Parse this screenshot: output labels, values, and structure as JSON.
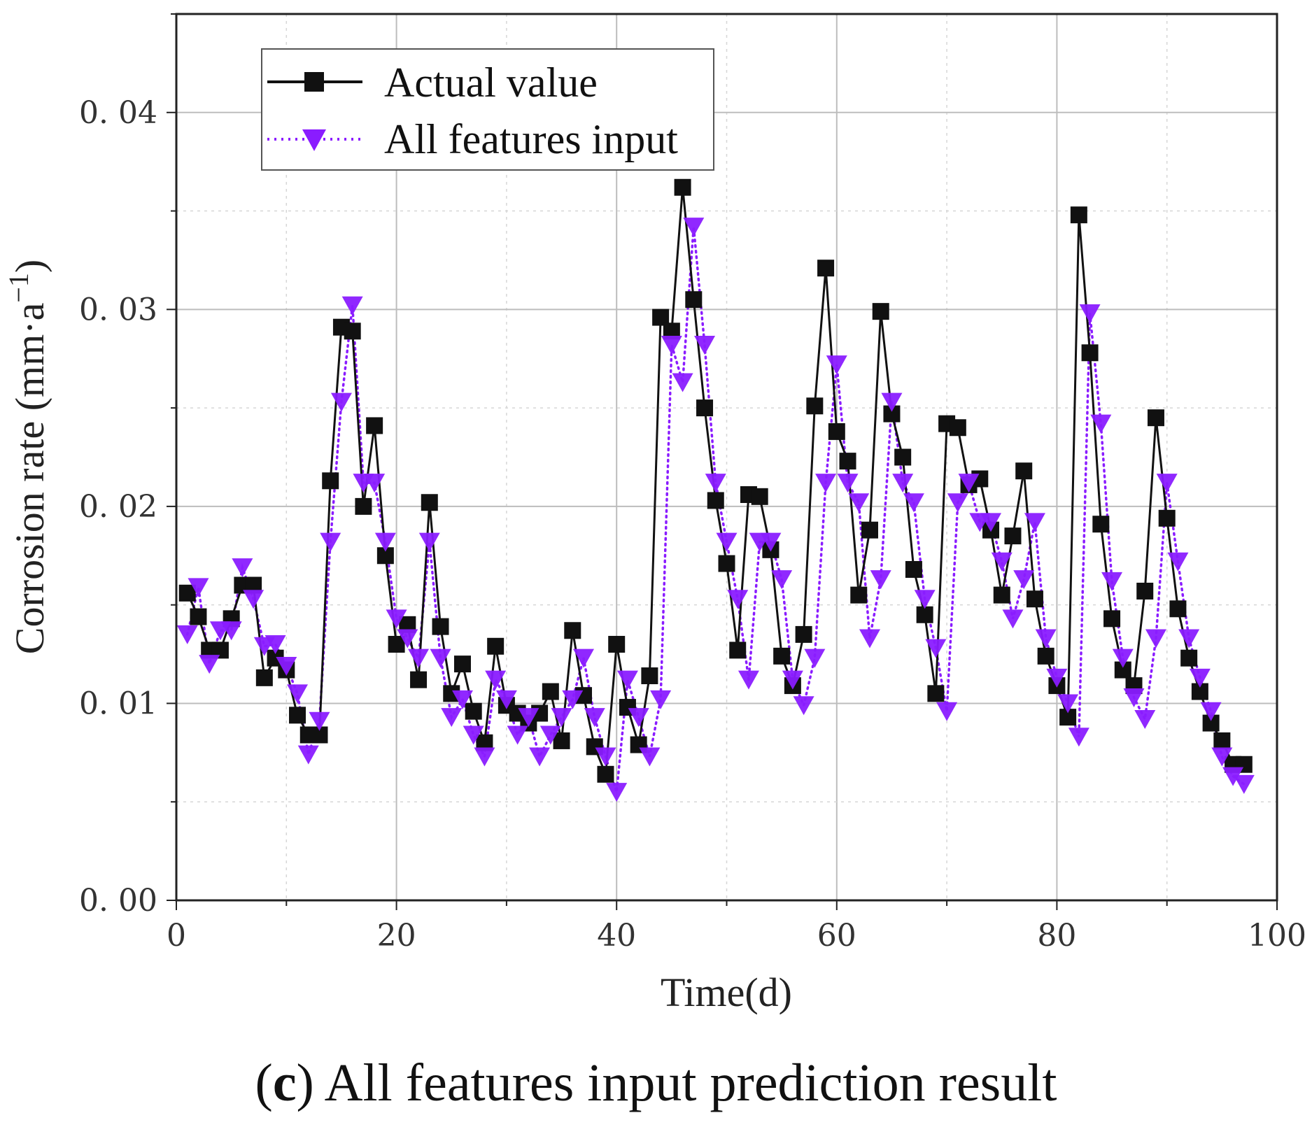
{
  "chart_data": {
    "type": "line",
    "xlabel": "Time(d)",
    "ylabel": "Corrosion rate (mm·a",
    "ylabel_sup": "−1",
    "ylabel_close": ")",
    "xlim": [
      0,
      100
    ],
    "ylim": [
      0,
      0.045
    ],
    "x_ticks": [
      0,
      20,
      40,
      60,
      80,
      100
    ],
    "x_tick_labels": [
      "0",
      "20",
      "40",
      "60",
      "80",
      "100"
    ],
    "y_ticks": [
      0,
      0.01,
      0.02,
      0.03,
      0.04
    ],
    "y_tick_labels": [
      "0. 00",
      "0. 01",
      "0. 02",
      "0. 03",
      "0. 04"
    ],
    "grid": true,
    "legend_position": "top-left",
    "x": [
      1,
      2,
      3,
      4,
      5,
      6,
      7,
      8,
      9,
      10,
      11,
      12,
      13,
      14,
      15,
      16,
      17,
      18,
      19,
      20,
      21,
      22,
      23,
      24,
      25,
      26,
      27,
      28,
      29,
      30,
      31,
      32,
      33,
      34,
      35,
      36,
      37,
      38,
      39,
      40,
      41,
      42,
      43,
      44,
      45,
      46,
      47,
      48,
      49,
      50,
      51,
      52,
      53,
      54,
      55,
      56,
      57,
      58,
      59,
      60,
      61,
      62,
      63,
      64,
      65,
      66,
      67,
      68,
      69,
      70,
      71,
      72,
      73,
      74,
      75,
      76,
      77,
      78,
      79,
      80,
      81,
      82,
      83,
      84,
      85,
      86,
      87,
      88,
      89,
      90,
      91,
      92,
      93,
      94,
      95,
      96,
      97
    ],
    "series": [
      {
        "name": "Actual value",
        "color": "#111111",
        "marker": "square",
        "line_style": "solid",
        "values": [
          0.0156,
          0.0144,
          0.0127,
          0.0127,
          0.0143,
          0.016,
          0.016,
          0.0113,
          0.0123,
          0.0117,
          0.0094,
          0.0084,
          0.0084,
          0.0213,
          0.0291,
          0.0289,
          0.02,
          0.0241,
          0.0175,
          0.013,
          0.014,
          0.0112,
          0.0202,
          0.0139,
          0.0105,
          0.012,
          0.0096,
          0.008,
          0.0129,
          0.0099,
          0.0095,
          0.009,
          0.0095,
          0.0106,
          0.0081,
          0.0137,
          0.0104,
          0.0078,
          0.0064,
          0.013,
          0.0098,
          0.0079,
          0.0114,
          0.0296,
          0.0289,
          0.0362,
          0.0305,
          0.025,
          0.0203,
          0.0171,
          0.0127,
          0.0206,
          0.0205,
          0.0178,
          0.0124,
          0.0109,
          0.0135,
          0.0251,
          0.0321,
          0.0238,
          0.0223,
          0.0155,
          0.0188,
          0.0299,
          0.0247,
          0.0225,
          0.0168,
          0.0145,
          0.0105,
          0.0242,
          0.024,
          0.0211,
          0.0214,
          0.0188,
          0.0155,
          0.0185,
          0.0218,
          0.0153,
          0.0124,
          0.0109,
          0.0093,
          0.0348,
          0.0278,
          0.0191,
          0.0143,
          0.0117,
          0.0109,
          0.0157,
          0.0245,
          0.0194,
          0.0148,
          0.0123,
          0.0106,
          0.009,
          0.0081,
          0.0069,
          0.0069
        ]
      },
      {
        "name": "All features input",
        "color": "#8a1cff",
        "marker": "triangle-down",
        "line_style": "dotted",
        "values": [
          0.0135,
          0.0159,
          0.012,
          0.0137,
          0.0137,
          0.0169,
          0.0153,
          0.0129,
          0.013,
          0.0119,
          0.0105,
          0.0074,
          0.0091,
          0.0182,
          0.0253,
          0.0302,
          0.0212,
          0.0212,
          0.0182,
          0.0143,
          0.0133,
          0.0123,
          0.0182,
          0.0123,
          0.0093,
          0.0102,
          0.0084,
          0.0073,
          0.0112,
          0.0102,
          0.0084,
          0.0093,
          0.0073,
          0.0084,
          0.0093,
          0.0102,
          0.0123,
          0.0093,
          0.0073,
          0.0055,
          0.0112,
          0.0093,
          0.0073,
          0.0102,
          0.0282,
          0.0263,
          0.0342,
          0.0282,
          0.0212,
          0.0182,
          0.0153,
          0.0112,
          0.0182,
          0.0182,
          0.0163,
          0.0112,
          0.0099,
          0.0123,
          0.0212,
          0.0272,
          0.0212,
          0.0202,
          0.0133,
          0.0163,
          0.0253,
          0.0212,
          0.0202,
          0.0153,
          0.0128,
          0.0096,
          0.0202,
          0.0212,
          0.0192,
          0.0192,
          0.0172,
          0.0143,
          0.0163,
          0.0192,
          0.0133,
          0.0113,
          0.01,
          0.0083,
          0.0298,
          0.0242,
          0.0162,
          0.0123,
          0.0103,
          0.0092,
          0.0133,
          0.0212,
          0.0172,
          0.0133,
          0.0113,
          0.0096,
          0.0073,
          0.0063,
          0.0059
        ]
      }
    ]
  },
  "caption": {
    "letter": "c",
    "text": " All features input prediction result"
  }
}
